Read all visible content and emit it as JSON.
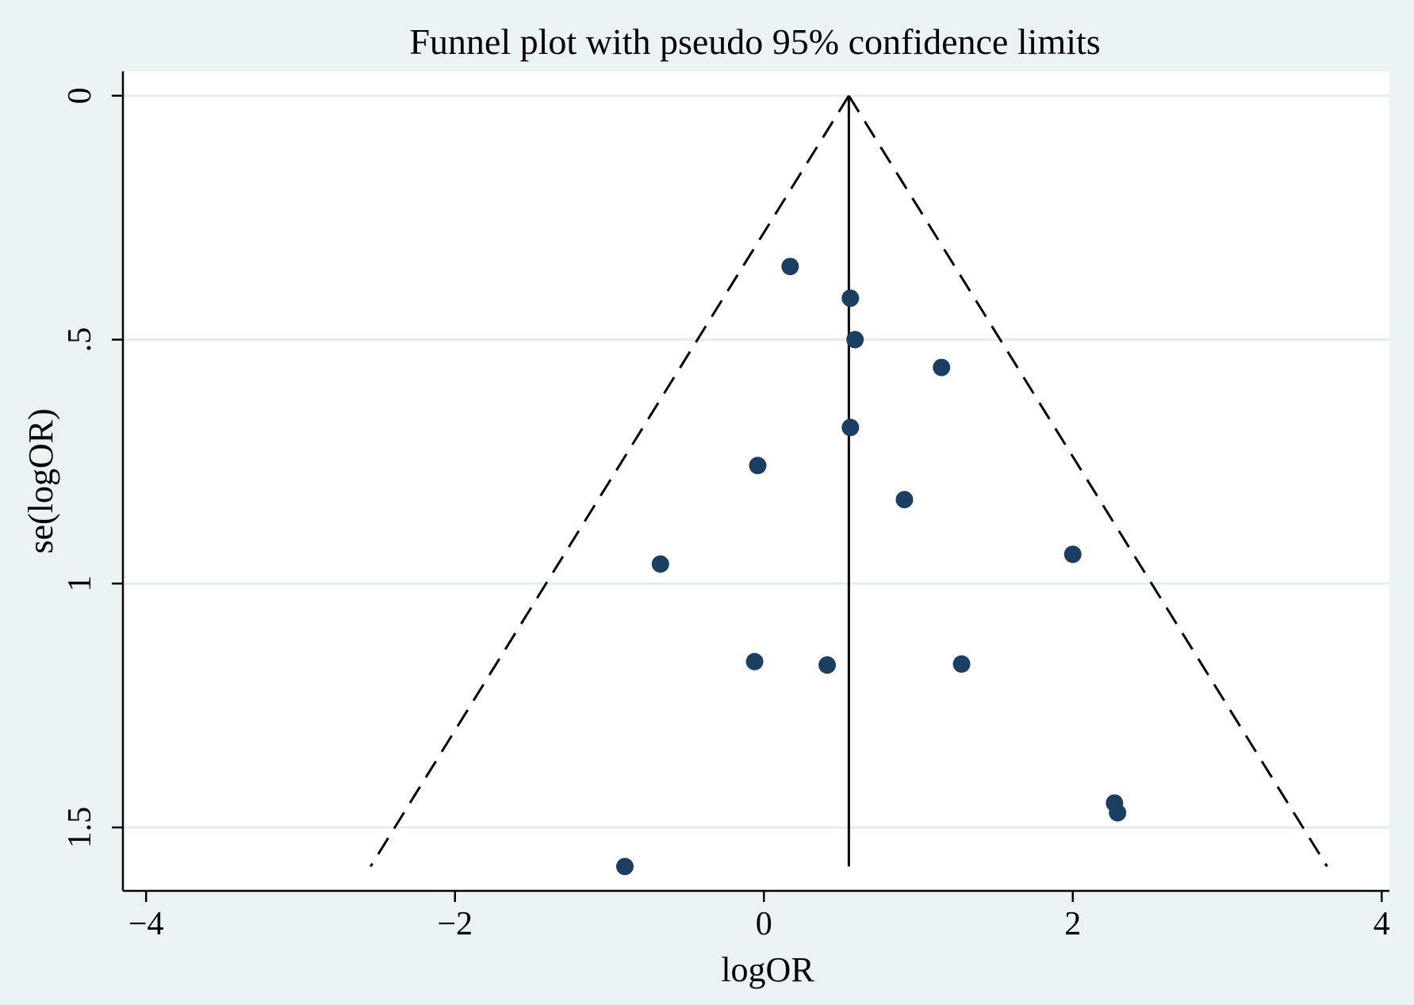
{
  "chart_data": {
    "type": "scatter",
    "title": "Funnel plot with pseudo 95% confidence limits",
    "xlabel": "logOR",
    "ylabel": "se(logOR)",
    "xlim": [
      -4.15,
      4.05
    ],
    "ylim": [
      -0.05,
      1.63
    ],
    "y_reversed": true,
    "x_ticks": [
      {
        "value": -4,
        "label": "−4"
      },
      {
        "value": -2,
        "label": "−2"
      },
      {
        "value": 0,
        "label": "0"
      },
      {
        "value": 2,
        "label": "2"
      },
      {
        "value": 4,
        "label": "4"
      }
    ],
    "y_ticks": [
      {
        "value": 0,
        "label": "0"
      },
      {
        "value": 0.5,
        "label": ".5"
      },
      {
        "value": 1,
        "label": "1"
      },
      {
        "value": 1.5,
        "label": "1.5"
      }
    ],
    "grid": "horizontal",
    "pooled_estimate": 0.55,
    "funnel": {
      "apex": {
        "x": 0.55,
        "y": 0
      },
      "bottom_se": 1.58,
      "z": 1.96,
      "line_style": "dashed"
    },
    "points": [
      {
        "x": 0.17,
        "y": 0.35
      },
      {
        "x": 0.56,
        "y": 0.415
      },
      {
        "x": 0.59,
        "y": 0.5
      },
      {
        "x": 1.15,
        "y": 0.557
      },
      {
        "x": 0.56,
        "y": 0.68
      },
      {
        "x": -0.04,
        "y": 0.758
      },
      {
        "x": 0.91,
        "y": 0.828
      },
      {
        "x": 2.0,
        "y": 0.94
      },
      {
        "x": -0.67,
        "y": 0.96
      },
      {
        "x": -0.06,
        "y": 1.16
      },
      {
        "x": 0.41,
        "y": 1.167
      },
      {
        "x": 1.28,
        "y": 1.165
      },
      {
        "x": 2.27,
        "y": 1.45
      },
      {
        "x": 2.29,
        "y": 1.47
      },
      {
        "x": -0.9,
        "y": 1.58
      }
    ],
    "colors": {
      "background": "#eaf2f3",
      "plot_background": "#ffffff",
      "gridline": "#e4eef1",
      "marker": "#1b3f63",
      "lines": "#000000"
    }
  }
}
